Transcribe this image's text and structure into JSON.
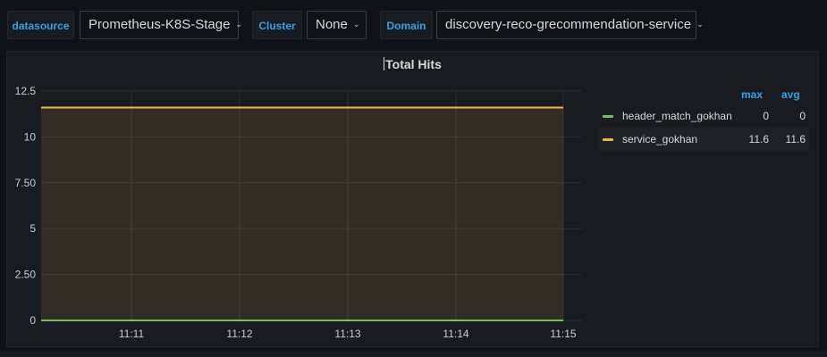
{
  "variables": [
    {
      "label": "datasource",
      "value": "Prometheus-K8S-Stage"
    },
    {
      "label": "Cluster",
      "value": "None"
    },
    {
      "label": "Domain",
      "value": "discovery-reco-grecommendation-service"
    }
  ],
  "panel": {
    "title": "Total Hits"
  },
  "legend": {
    "headers": {
      "max": "max",
      "avg": "avg"
    },
    "rows": [
      {
        "name": "header_match_gokhan",
        "max": "0",
        "avg": "0",
        "color": "#73bf69"
      },
      {
        "name": "service_gokhan",
        "max": "11.6",
        "avg": "11.6",
        "color": "#f2b646"
      }
    ]
  },
  "chart_data": {
    "type": "area",
    "title": "Total Hits",
    "x_ticks": [
      "11:11",
      "11:12",
      "11:13",
      "11:14",
      "11:15"
    ],
    "y_ticks": [
      "0",
      "2.50",
      "5",
      "7.50",
      "10",
      "12.5"
    ],
    "ylim": [
      0,
      12.5
    ],
    "grid": true,
    "legend_position": "right",
    "series": [
      {
        "name": "header_match_gokhan",
        "color": "#73bf69",
        "values": [
          0,
          0,
          0,
          0,
          0,
          0
        ]
      },
      {
        "name": "service_gokhan",
        "color": "#f2b646",
        "values": [
          11.6,
          11.6,
          11.6,
          11.6,
          11.6,
          11.6
        ]
      }
    ]
  }
}
